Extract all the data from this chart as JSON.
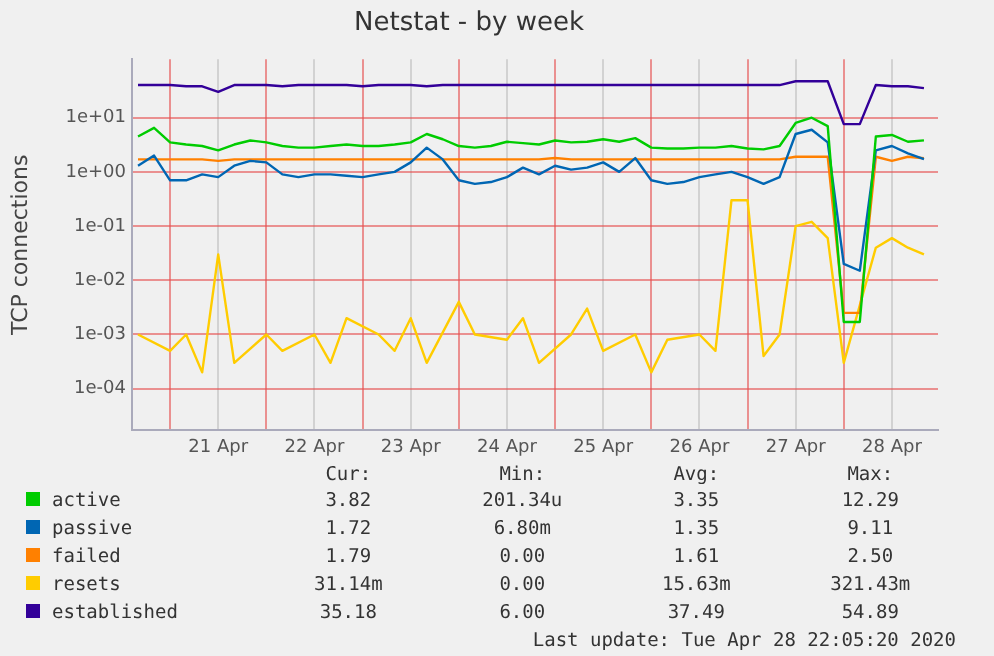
{
  "chart_data": {
    "type": "line",
    "title": "Netstat - by week",
    "ylabel": "TCP connections",
    "x": [
      "2020-04-20T16:00",
      "2020-04-20T20:00",
      "2020-04-21T00:00",
      "2020-04-21T04:00",
      "2020-04-21T08:00",
      "2020-04-21T12:00",
      "2020-04-21T16:00",
      "2020-04-21T20:00",
      "2020-04-22T00:00",
      "2020-04-22T04:00",
      "2020-04-22T08:00",
      "2020-04-22T12:00",
      "2020-04-22T16:00",
      "2020-04-22T20:00",
      "2020-04-23T00:00",
      "2020-04-23T04:00",
      "2020-04-23T08:00",
      "2020-04-23T12:00",
      "2020-04-23T16:00",
      "2020-04-23T20:00",
      "2020-04-24T00:00",
      "2020-04-24T04:00",
      "2020-04-24T08:00",
      "2020-04-24T12:00",
      "2020-04-24T16:00",
      "2020-04-24T20:00",
      "2020-04-25T00:00",
      "2020-04-25T04:00",
      "2020-04-25T08:00",
      "2020-04-25T12:00",
      "2020-04-25T16:00",
      "2020-04-25T20:00",
      "2020-04-26T00:00",
      "2020-04-26T04:00",
      "2020-04-26T08:00",
      "2020-04-26T12:00",
      "2020-04-26T16:00",
      "2020-04-26T20:00",
      "2020-04-27T00:00",
      "2020-04-27T04:00",
      "2020-04-27T08:00",
      "2020-04-27T12:00",
      "2020-04-27T16:00",
      "2020-04-27T20:00",
      "2020-04-28T00:00",
      "2020-04-28T04:00",
      "2020-04-28T08:00",
      "2020-04-28T12:00",
      "2020-04-28T16:00",
      "2020-04-28T20:00"
    ],
    "series": [
      {
        "name": "active",
        "color": "#00cc00",
        "values": [
          4.5,
          6.5,
          3.5,
          3.2,
          3.0,
          2.5,
          3.2,
          3.8,
          3.5,
          3.0,
          2.8,
          2.8,
          3.0,
          3.2,
          3.0,
          3.0,
          3.2,
          3.5,
          5.0,
          4.0,
          3.0,
          2.8,
          3.0,
          3.6,
          3.4,
          3.2,
          3.8,
          3.5,
          3.6,
          4.0,
          3.6,
          4.2,
          2.8,
          2.7,
          2.7,
          2.8,
          2.8,
          3.0,
          2.7,
          2.6,
          3.0,
          8.0,
          10,
          7.0,
          0.0017,
          0.0017,
          4.5,
          4.8,
          3.6,
          3.82
        ]
      },
      {
        "name": "passive",
        "color": "#0066b3",
        "values": [
          1.3,
          2.0,
          0.7,
          0.7,
          0.9,
          0.8,
          1.3,
          1.6,
          1.5,
          0.9,
          0.8,
          0.9,
          0.9,
          0.85,
          0.8,
          0.9,
          1.0,
          1.5,
          2.8,
          1.7,
          0.7,
          0.6,
          0.65,
          0.8,
          1.2,
          0.9,
          1.3,
          1.1,
          1.2,
          1.5,
          1.0,
          1.8,
          0.7,
          0.6,
          0.65,
          0.8,
          0.9,
          1.0,
          0.8,
          0.6,
          0.8,
          5.0,
          6.0,
          3.5,
          0.02,
          0.015,
          2.5,
          3.0,
          2.2,
          1.72
        ]
      },
      {
        "name": "failed",
        "color": "#ff8000",
        "values": [
          1.7,
          1.7,
          1.7,
          1.7,
          1.7,
          1.6,
          1.7,
          1.7,
          1.7,
          1.7,
          1.7,
          1.7,
          1.7,
          1.7,
          1.7,
          1.7,
          1.7,
          1.7,
          1.7,
          1.7,
          1.7,
          1.7,
          1.7,
          1.7,
          1.7,
          1.7,
          1.8,
          1.7,
          1.7,
          1.7,
          1.7,
          1.7,
          1.7,
          1.7,
          1.7,
          1.7,
          1.7,
          1.7,
          1.7,
          1.7,
          1.7,
          1.9,
          1.9,
          1.9,
          0.0025,
          0.0025,
          1.9,
          1.6,
          1.9,
          1.79
        ]
      },
      {
        "name": "resets",
        "color": "#ffcc00",
        "values": [
          0.001,
          null,
          0.0005,
          0.001,
          0.0002,
          0.03,
          0.0003,
          null,
          0.001,
          0.0005,
          null,
          0.001,
          0.0003,
          0.002,
          null,
          0.001,
          0.0005,
          0.002,
          0.0003,
          null,
          0.004,
          0.001,
          null,
          0.0008,
          0.002,
          0.0003,
          null,
          0.001,
          0.003,
          0.0005,
          null,
          0.001,
          0.0002,
          0.0008,
          null,
          0.001,
          0.0005,
          0.3,
          0.3,
          0.0004,
          0.001,
          0.1,
          0.12,
          0.06,
          0.0003,
          null,
          0.04,
          0.06,
          0.04,
          0.03
        ]
      },
      {
        "name": "established",
        "color": "#330099",
        "values": [
          40,
          40,
          40,
          38,
          38,
          30,
          40,
          40,
          40,
          38,
          40,
          40,
          40,
          40,
          38,
          40,
          40,
          40,
          38,
          40,
          40,
          40,
          40,
          40,
          40,
          40,
          40,
          40,
          40,
          40,
          40,
          40,
          40,
          40,
          40,
          40,
          40,
          40,
          40,
          40,
          40,
          47,
          47,
          47,
          7.6,
          7.6,
          40,
          38,
          38,
          35.18
        ]
      }
    ],
    "log": "y",
    "ylim": [
      1.7e-05,
      120
    ],
    "yticks": [
      {
        "value": 0.0001,
        "label": "1e-04"
      },
      {
        "value": 0.001,
        "label": "1e-03"
      },
      {
        "value": 0.01,
        "label": "1e-02"
      },
      {
        "value": 0.1,
        "label": "1e-01"
      },
      {
        "value": 1,
        "label": "1e+00"
      },
      {
        "value": 10,
        "label": "1e+01"
      }
    ],
    "xlim": [
      "2020-04-20T14:30",
      "2020-04-28T23:30"
    ],
    "xticks": [
      {
        "value": "2020-04-21T00:00",
        "label": null
      },
      {
        "value": "2020-04-21T12:00",
        "label": "21 Apr"
      },
      {
        "value": "2020-04-22T00:00",
        "label": null
      },
      {
        "value": "2020-04-22T12:00",
        "label": "22 Apr"
      },
      {
        "value": "2020-04-23T00:00",
        "label": null
      },
      {
        "value": "2020-04-23T12:00",
        "label": "23 Apr"
      },
      {
        "value": "2020-04-24T00:00",
        "label": null
      },
      {
        "value": "2020-04-24T12:00",
        "label": "24 Apr"
      },
      {
        "value": "2020-04-25T00:00",
        "label": null
      },
      {
        "value": "2020-04-25T12:00",
        "label": "25 Apr"
      },
      {
        "value": "2020-04-26T00:00",
        "label": null
      },
      {
        "value": "2020-04-26T12:00",
        "label": "26 Apr"
      },
      {
        "value": "2020-04-27T00:00",
        "label": null
      },
      {
        "value": "2020-04-27T12:00",
        "label": "27 Apr"
      },
      {
        "value": "2020-04-28T00:00",
        "label": null
      },
      {
        "value": "2020-04-28T12:00",
        "label": "28 Apr"
      }
    ],
    "grid": true,
    "legend": "bottom",
    "marker": "none",
    "line_style": "solid",
    "annotations": [
      "Cur:",
      "Min:",
      "Avg:",
      "Max:",
      "3.82",
      "201.34u",
      "3.35",
      "12.29",
      "1.72",
      "6.80m",
      "1.35",
      "9.11",
      "1.79",
      "0.00",
      "1.61",
      "2.50",
      "31.14m",
      "0.00",
      "15.63m",
      "321.43m",
      "35.18",
      "6.00",
      "37.49",
      "54.89",
      "Last update: Tue Apr 28 22:05:20 2020"
    ]
  }
}
